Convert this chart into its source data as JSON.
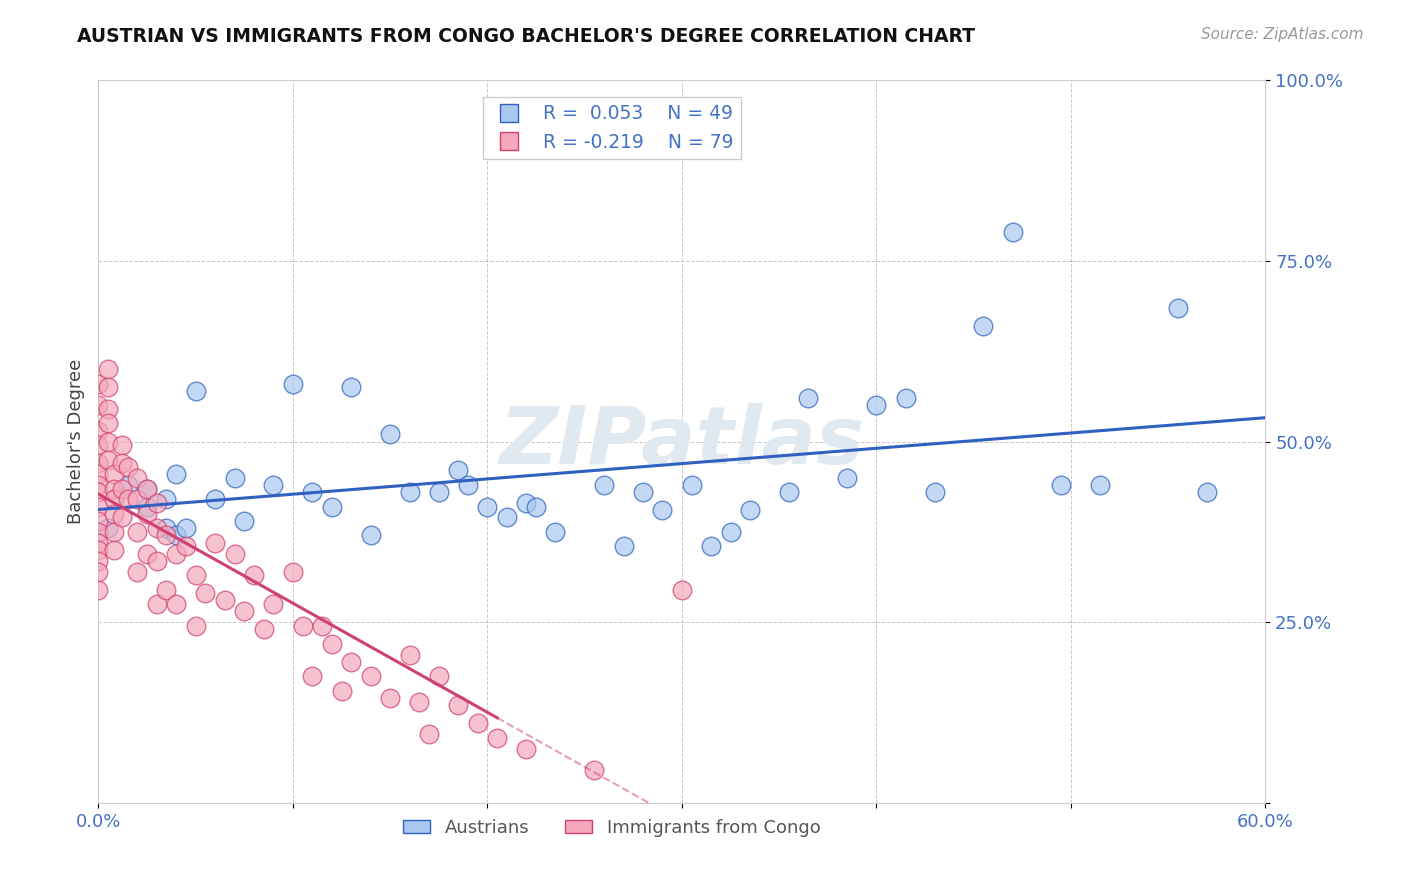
{
  "title": "AUSTRIAN VS IMMIGRANTS FROM CONGO BACHELOR'S DEGREE CORRELATION CHART",
  "source_text": "Source: ZipAtlas.com",
  "ylabel": "Bachelor's Degree",
  "xlim": [
    0.0,
    0.6
  ],
  "ylim": [
    0.0,
    1.0
  ],
  "xticks": [
    0.0,
    0.1,
    0.2,
    0.3,
    0.4,
    0.5,
    0.6
  ],
  "xticklabels": [
    "0.0%",
    "",
    "",
    "",
    "",
    "",
    "60.0%"
  ],
  "yticks": [
    0.0,
    0.25,
    0.5,
    0.75,
    1.0
  ],
  "yticklabels": [
    "",
    "25.0%",
    "50.0%",
    "75.0%",
    "100.0%"
  ],
  "r_austrians": 0.053,
  "n_austrians": 49,
  "r_congo": -0.219,
  "n_congo": 79,
  "color_austrians": "#A8C8F0",
  "color_congo": "#F4A8BC",
  "color_line_austrians": "#3060C0",
  "color_line_congo": "#D04070",
  "watermark": "ZIPatlas",
  "legend_labels": [
    "Austrians",
    "Immigrants from Congo"
  ],
  "austrians_x": [
    0.005,
    0.015,
    0.025,
    0.025,
    0.035,
    0.035,
    0.04,
    0.04,
    0.045,
    0.05,
    0.06,
    0.07,
    0.075,
    0.09,
    0.1,
    0.11,
    0.12,
    0.13,
    0.14,
    0.15,
    0.16,
    0.175,
    0.185,
    0.19,
    0.2,
    0.21,
    0.22,
    0.225,
    0.235,
    0.26,
    0.27,
    0.28,
    0.29,
    0.305,
    0.315,
    0.325,
    0.335,
    0.355,
    0.365,
    0.385,
    0.4,
    0.415,
    0.43,
    0.455,
    0.47,
    0.495,
    0.515,
    0.555,
    0.57
  ],
  "austrians_y": [
    0.38,
    0.44,
    0.41,
    0.435,
    0.38,
    0.42,
    0.37,
    0.455,
    0.38,
    0.57,
    0.42,
    0.45,
    0.39,
    0.44,
    0.58,
    0.43,
    0.41,
    0.575,
    0.37,
    0.51,
    0.43,
    0.43,
    0.46,
    0.44,
    0.41,
    0.395,
    0.415,
    0.41,
    0.375,
    0.44,
    0.355,
    0.43,
    0.405,
    0.44,
    0.355,
    0.375,
    0.405,
    0.43,
    0.56,
    0.45,
    0.55,
    0.56,
    0.43,
    0.66,
    0.79,
    0.44,
    0.44,
    0.685,
    0.43
  ],
  "congo_x": [
    0.0,
    0.0,
    0.0,
    0.0,
    0.0,
    0.0,
    0.0,
    0.0,
    0.0,
    0.0,
    0.0,
    0.0,
    0.0,
    0.0,
    0.0,
    0.0,
    0.005,
    0.005,
    0.005,
    0.005,
    0.005,
    0.005,
    0.008,
    0.008,
    0.008,
    0.008,
    0.008,
    0.008,
    0.012,
    0.012,
    0.012,
    0.012,
    0.015,
    0.015,
    0.02,
    0.02,
    0.02,
    0.02,
    0.025,
    0.025,
    0.025,
    0.03,
    0.03,
    0.03,
    0.03,
    0.035,
    0.035,
    0.04,
    0.04,
    0.045,
    0.05,
    0.05,
    0.055,
    0.06,
    0.065,
    0.07,
    0.075,
    0.08,
    0.085,
    0.09,
    0.1,
    0.105,
    0.11,
    0.115,
    0.12,
    0.125,
    0.13,
    0.14,
    0.15,
    0.16,
    0.165,
    0.17,
    0.175,
    0.185,
    0.195,
    0.205,
    0.22,
    0.255,
    0.3
  ],
  "congo_y": [
    0.58,
    0.55,
    0.515,
    0.495,
    0.47,
    0.455,
    0.44,
    0.43,
    0.41,
    0.39,
    0.375,
    0.36,
    0.35,
    0.335,
    0.32,
    0.295,
    0.6,
    0.575,
    0.545,
    0.525,
    0.5,
    0.475,
    0.455,
    0.435,
    0.42,
    0.4,
    0.375,
    0.35,
    0.495,
    0.47,
    0.435,
    0.395,
    0.465,
    0.42,
    0.45,
    0.42,
    0.375,
    0.32,
    0.435,
    0.4,
    0.345,
    0.415,
    0.38,
    0.335,
    0.275,
    0.37,
    0.295,
    0.345,
    0.275,
    0.355,
    0.315,
    0.245,
    0.29,
    0.36,
    0.28,
    0.345,
    0.265,
    0.315,
    0.24,
    0.275,
    0.32,
    0.245,
    0.175,
    0.245,
    0.22,
    0.155,
    0.195,
    0.175,
    0.145,
    0.205,
    0.14,
    0.095,
    0.175,
    0.135,
    0.11,
    0.09,
    0.075,
    0.045,
    0.295
  ]
}
